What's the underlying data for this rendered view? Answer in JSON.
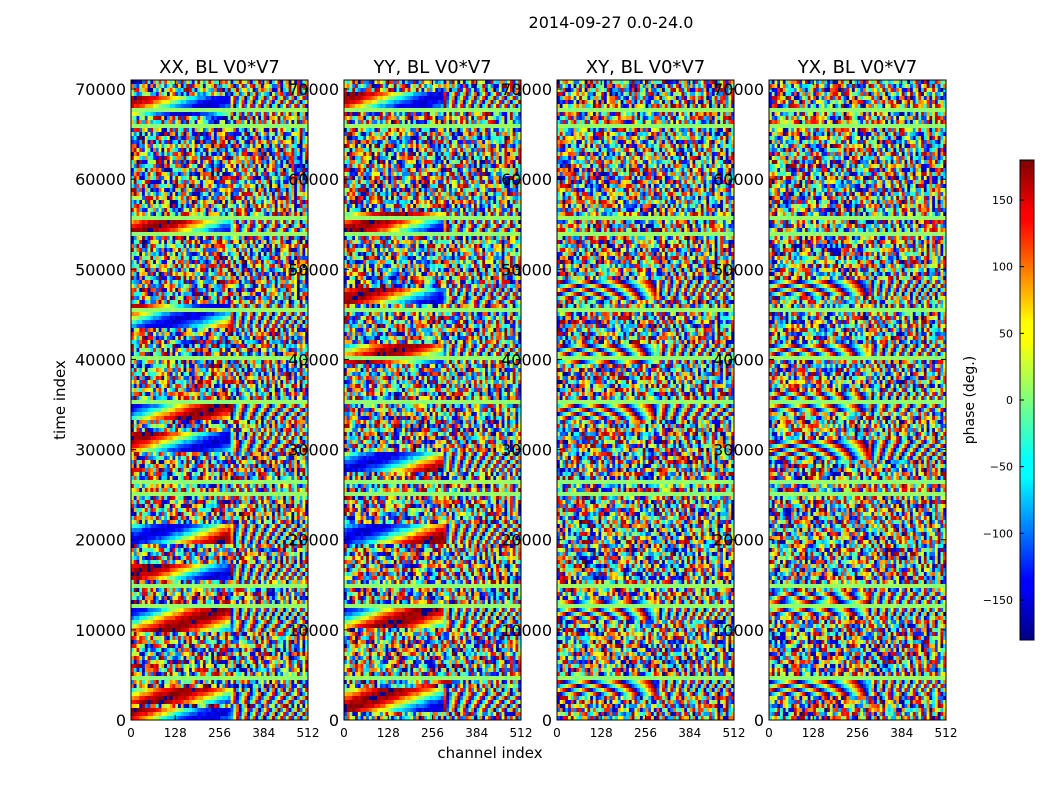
{
  "chart_data": {
    "type": "heatmap",
    "suptitle": "2014-09-27 0.0-24.0",
    "xlabel": "channel index",
    "ylabel": "time index",
    "xlim": [
      0,
      512
    ],
    "ylim": [
      0,
      71000
    ],
    "x_ticks": [
      0,
      128,
      256,
      384,
      512
    ],
    "y_ticks": [
      0,
      10000,
      20000,
      30000,
      40000,
      50000,
      60000,
      70000
    ],
    "colormap": "jet",
    "colorbar": {
      "label": "phase (deg.)",
      "range": [
        -180,
        180
      ],
      "ticks": [
        -150,
        -100,
        -50,
        0,
        50,
        100,
        150
      ],
      "tick_labels": [
        "−150",
        "−100",
        "−50",
        "0",
        "50",
        "100",
        "150"
      ]
    },
    "panels": [
      {
        "title": "XX, BL V0*V7",
        "pol": "XX"
      },
      {
        "title": "YY, BL V0*V7",
        "pol": "YY"
      },
      {
        "title": "XY, BL V0*V7",
        "pol": "XY"
      },
      {
        "title": "YX, BL V0*V7",
        "pol": "YX"
      }
    ]
  }
}
